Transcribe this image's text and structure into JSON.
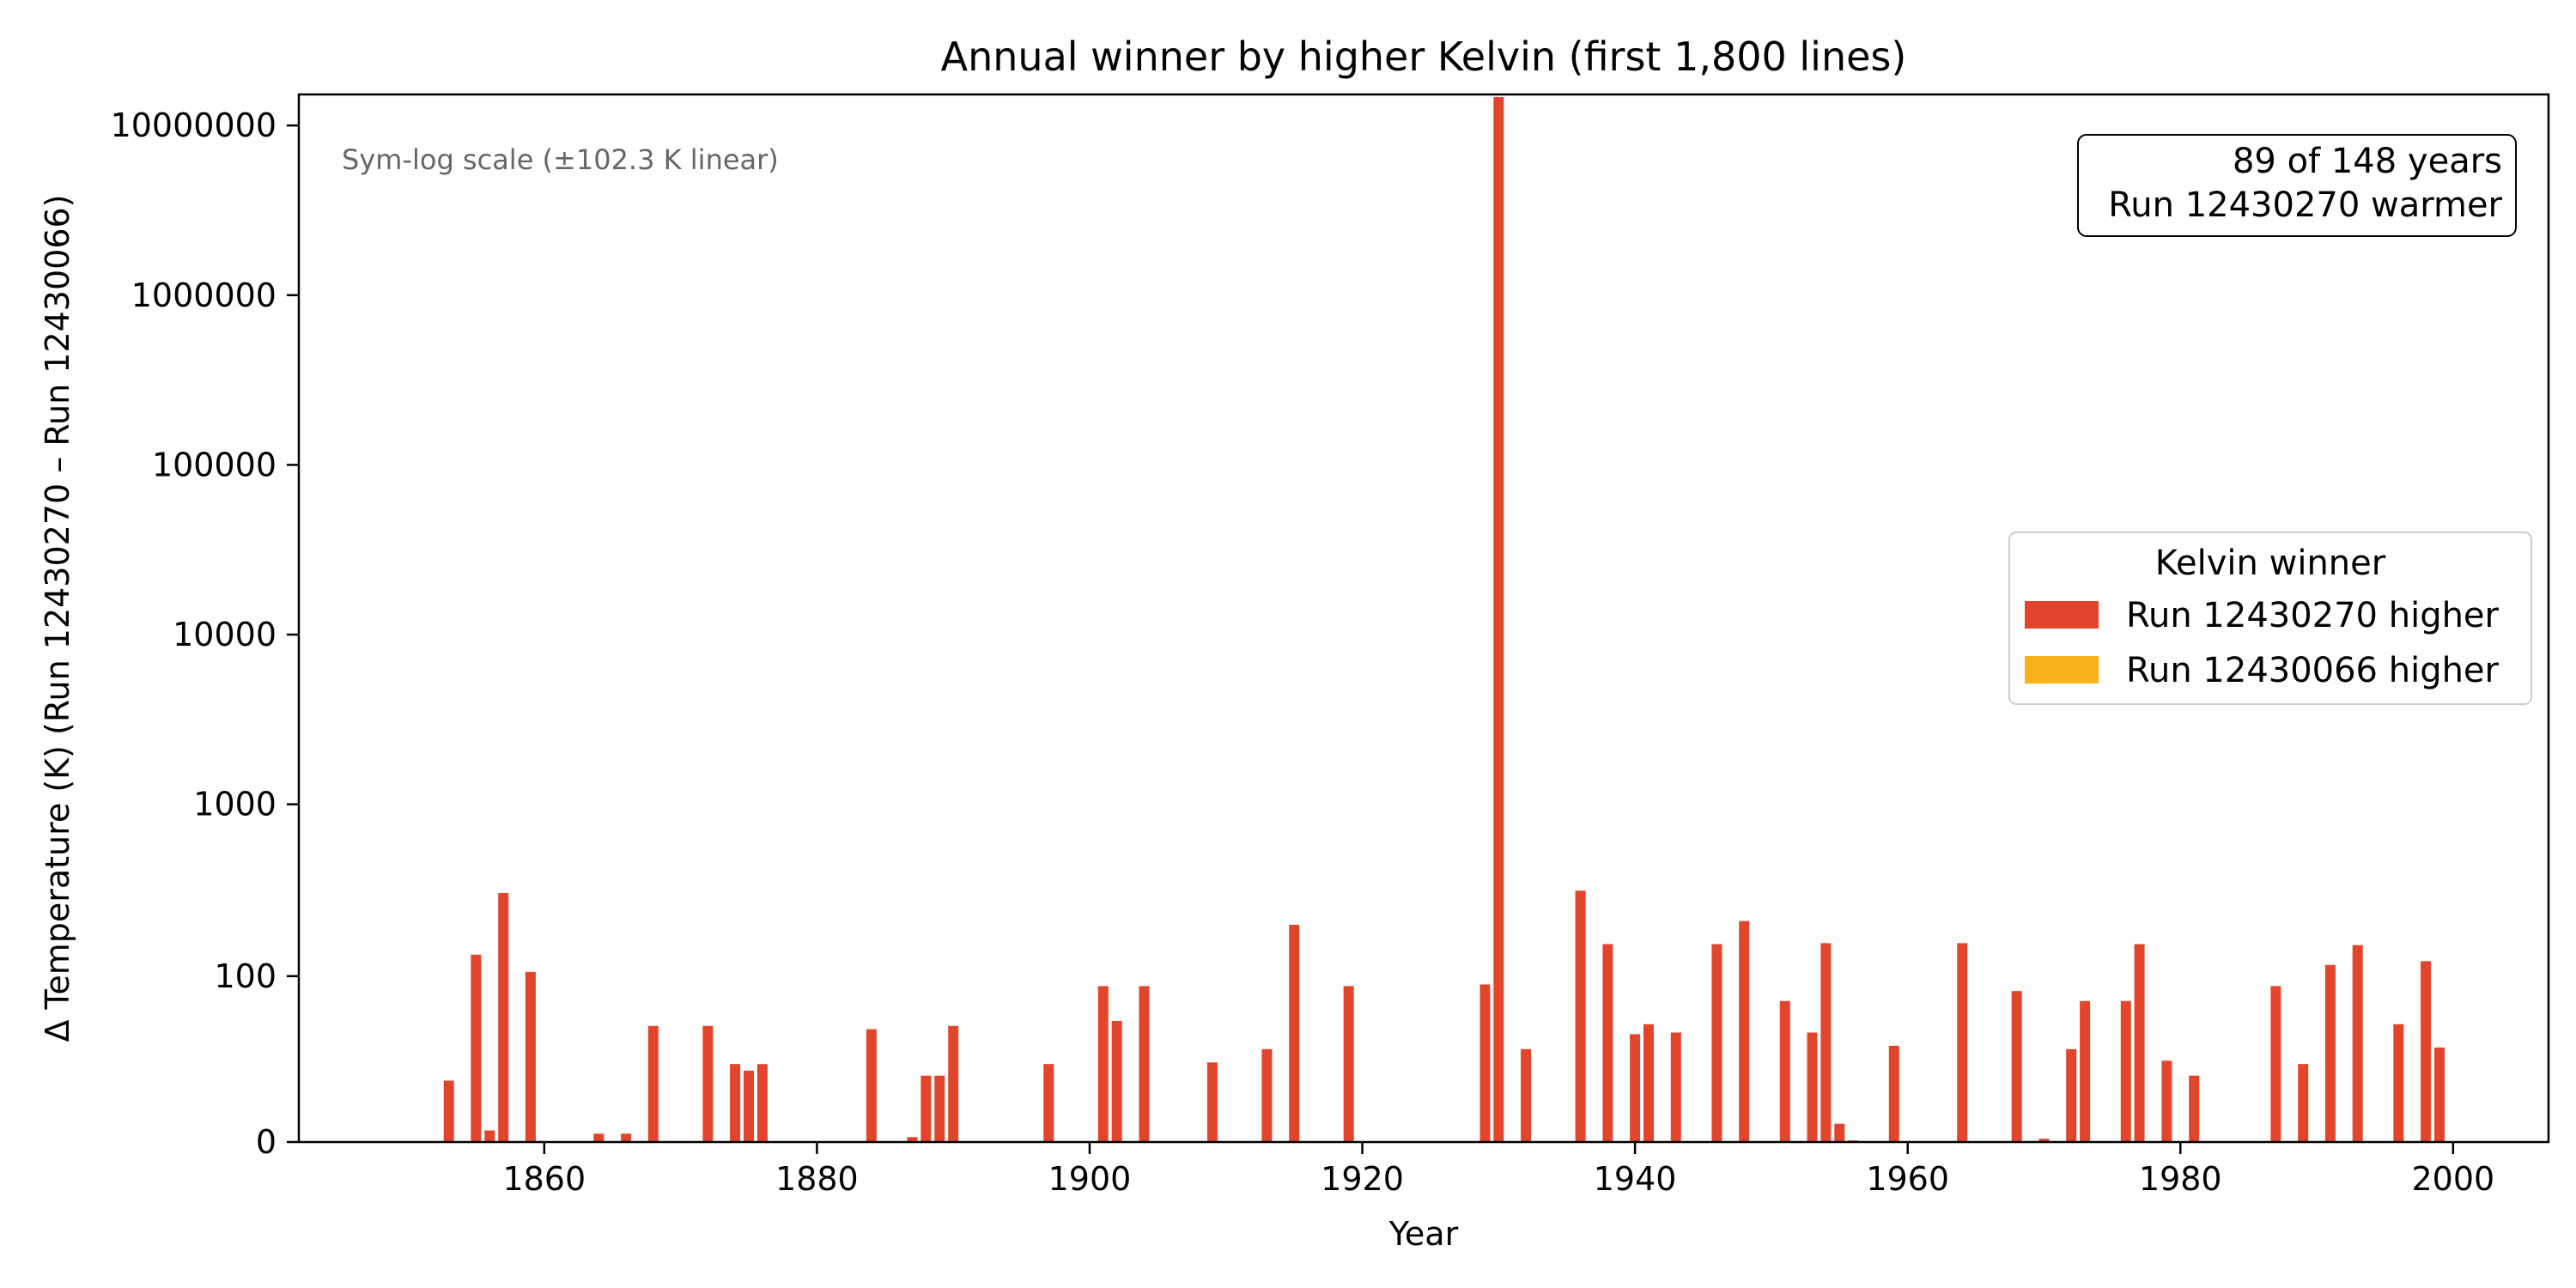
{
  "chart_data": {
    "type": "bar",
    "title": "Annual winner by higher Kelvin (first 1,800 lines)",
    "xlabel": "Year",
    "ylabel": "Δ Temperature (K) (Run 12430270 – Run 12430066)",
    "scale_note": "Sym-log scale (±102.3 K linear)",
    "yscale": "symlog",
    "linthresh": 102.3,
    "xlim": [
      1842,
      2007
    ],
    "ylim": [
      0,
      35000000
    ],
    "xticks": [
      {
        "value": 1860,
        "label": "1860"
      },
      {
        "value": 1880,
        "label": "1880"
      },
      {
        "value": 1900,
        "label": "1900"
      },
      {
        "value": 1920,
        "label": "1920"
      },
      {
        "value": 1940,
        "label": "1940"
      },
      {
        "value": 1960,
        "label": "1960"
      },
      {
        "value": 1980,
        "label": "1980"
      },
      {
        "value": 2000,
        "label": "2000"
      }
    ],
    "yticks": [
      {
        "value": 0,
        "label": "0"
      },
      {
        "value": 100,
        "label": "100"
      },
      {
        "value": 1000,
        "label": "1000"
      },
      {
        "value": 10000,
        "label": "10000"
      },
      {
        "value": 100000,
        "label": "100000"
      },
      {
        "value": 1000000,
        "label": "1000000"
      },
      {
        "value": 10000000,
        "label": "10000000"
      }
    ],
    "summary_box": {
      "line1": "89 of 148 years",
      "line2": "Run 12430270 warmer"
    },
    "legend": {
      "title": "Kelvin winner",
      "placement": "center-right",
      "entries": [
        {
          "label": "Run 12430270 higher",
          "color": "#e2452c"
        },
        {
          "label": "Run 12430066 higher",
          "color": "#f7b21b"
        }
      ]
    },
    "series": [
      {
        "color": "#e2452c",
        "x": [
          1853,
          1855,
          1856,
          1857,
          1859,
          1864,
          1866,
          1868,
          1872,
          1874,
          1875,
          1876,
          1884,
          1887,
          1888,
          1889,
          1890,
          1897,
          1901,
          1902,
          1904,
          1907,
          1909,
          1913,
          1915,
          1919,
          1929,
          1930,
          1932,
          1936,
          1938,
          1940,
          1941,
          1943,
          1945,
          1946,
          1948,
          1951,
          1953,
          1954,
          1955,
          1956,
          1959,
          1964,
          1968,
          1970,
          1972,
          1973,
          1976,
          1977,
          1979,
          1981,
          1987,
          1989,
          1991,
          1993,
          1996,
          1998,
          1999
        ],
        "values": [
          37,
          130,
          7,
          300,
          103,
          5,
          5,
          70,
          70,
          47,
          43,
          47,
          68,
          3,
          40,
          40,
          70,
          47,
          94,
          73,
          94,
          0.5,
          48,
          56,
          195,
          94,
          95,
          33000000,
          56,
          310,
          150,
          65,
          71,
          66,
          0.5,
          150,
          205,
          85,
          66,
          152,
          11,
          1,
          58,
          152,
          91,
          2,
          56,
          85,
          85,
          150,
          49,
          40,
          94,
          47,
          113,
          148,
          71,
          119,
          57
        ]
      }
    ]
  }
}
